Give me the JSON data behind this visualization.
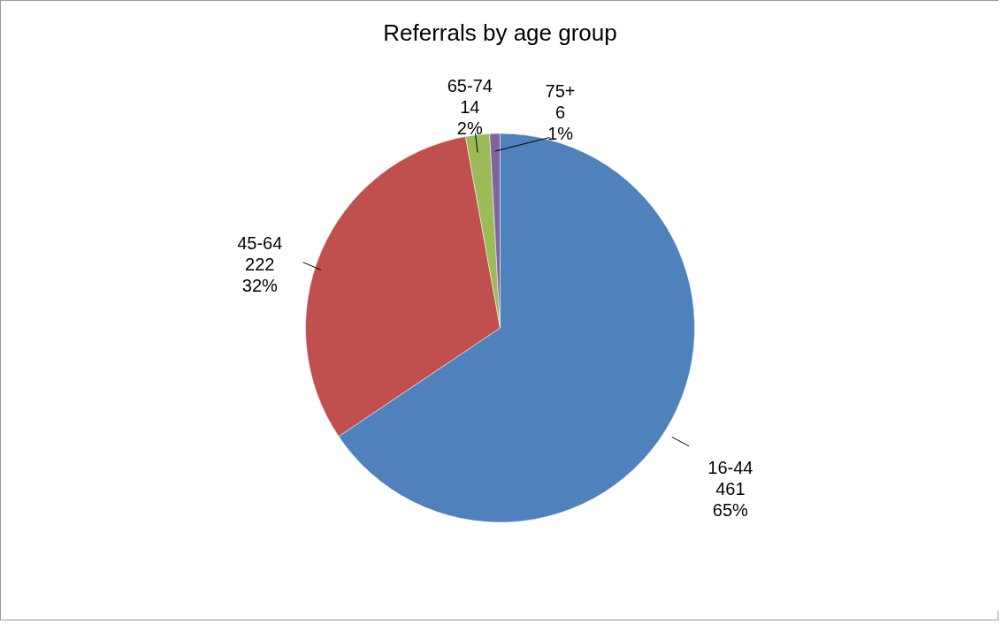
{
  "chart_data": {
    "type": "pie",
    "title": "Referrals by age group",
    "categories": [
      "16-44",
      "45-64",
      "65-74",
      "75+"
    ],
    "values": [
      461,
      222,
      14,
      6
    ],
    "colors": [
      "#4f81bd",
      "#c0504d",
      "#9bbb59",
      "#8064a2"
    ],
    "value_labels": [
      "461\n65%",
      "222\n32%",
      "14\n2%",
      "6\n1%"
    ]
  }
}
